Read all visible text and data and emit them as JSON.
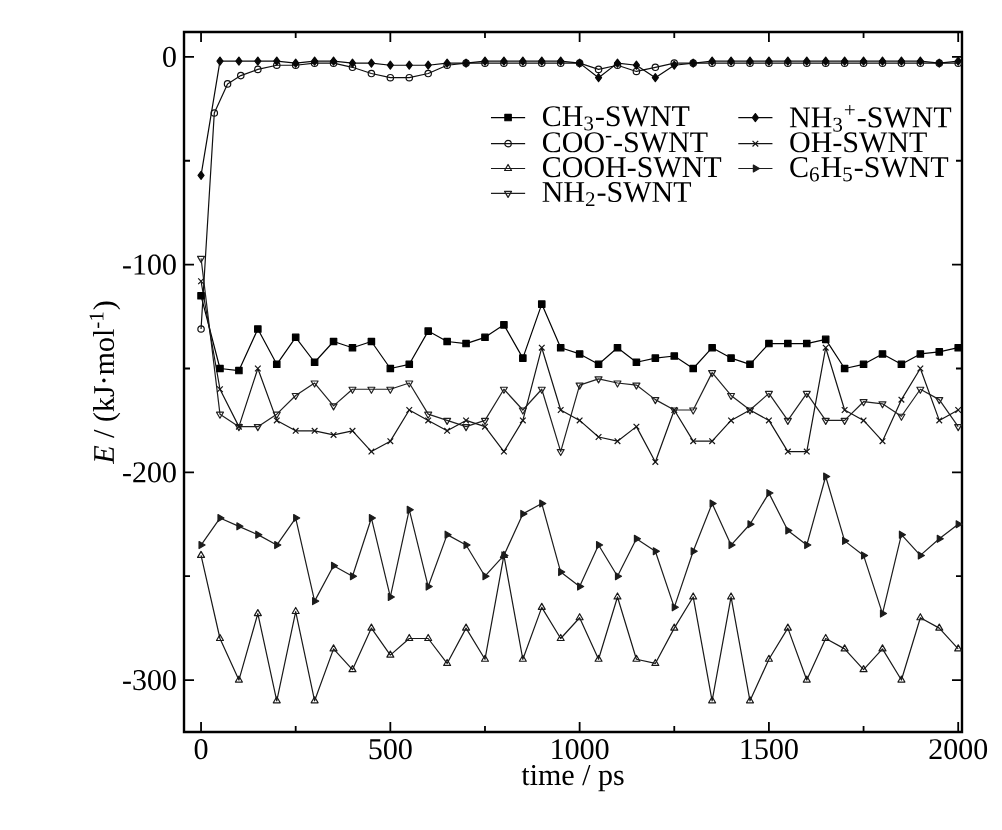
{
  "chart_data": {
    "type": "line",
    "xlabel": "time / ps",
    "ylabel": "*E* / (kJ·mol$^{-1}$)",
    "xlim": [
      -45,
      2010
    ],
    "ylim": [
      -325,
      12
    ],
    "xticks": [
      0,
      500,
      1000,
      1500,
      2000
    ],
    "yticks": [
      0,
      -100,
      -200,
      -300
    ],
    "legend": "top right",
    "line_style": "solid",
    "x": [
      0,
      50,
      100,
      150,
      200,
      250,
      300,
      350,
      400,
      450,
      500,
      550,
      600,
      650,
      700,
      750,
      800,
      850,
      900,
      950,
      1000,
      1050,
      1100,
      1150,
      1200,
      1250,
      1300,
      1350,
      1400,
      1450,
      1500,
      1550,
      1600,
      1650,
      1700,
      1750,
      1800,
      1850,
      1900,
      1950,
      2000
    ],
    "series": [
      {
        "name": "CH$_{3}$-SWNT",
        "color": "#000000",
        "marker": "square",
        "values": [
          -115,
          -150,
          -151,
          -131,
          -148,
          -135,
          -147,
          -137,
          -140,
          -137,
          -150,
          -148,
          -132,
          -137,
          -138,
          -135,
          -129,
          -145,
          -119,
          -140,
          -143,
          -148,
          -140,
          -147,
          -145,
          -144,
          -150,
          -140,
          -145,
          -148,
          -138,
          -138,
          -138,
          -136,
          -150,
          -148,
          -143,
          -148,
          -143,
          -142,
          -140
        ]
      },
      {
        "name": "COO$^{-}$-SWNT",
        "color": "#101010",
        "marker": "circle",
        "x": [
          0,
          35,
          70,
          105,
          150,
          200,
          250,
          300,
          350,
          400,
          450,
          500,
          550,
          600,
          650,
          700,
          750,
          800,
          850,
          900,
          950,
          1000,
          1050,
          1100,
          1150,
          1200,
          1250,
          1300,
          1350,
          1400,
          1450,
          1500,
          1550,
          1600,
          1650,
          1700,
          1750,
          1800,
          1850,
          1900,
          1950,
          2000
        ],
        "values": [
          -131,
          -27,
          -13,
          -9,
          -6,
          -4,
          -4,
          -3,
          -3,
          -5,
          -8,
          -10,
          -10,
          -8,
          -4,
          -3,
          -3,
          -3,
          -3,
          -3,
          -3,
          -3,
          -6,
          -4,
          -7,
          -5,
          -3,
          -3,
          -3,
          -3,
          -3,
          -3,
          -3,
          -3,
          -3,
          -3,
          -3,
          -3,
          -3,
          -3,
          -3,
          -3
        ]
      },
      {
        "name": "COOH-SWNT",
        "color": "#181818",
        "marker": "triangle",
        "values": [
          -240,
          -280,
          -300,
          -268,
          -310,
          -267,
          -310,
          -285,
          -295,
          -275,
          -288,
          -280,
          -280,
          -292,
          -275,
          -290,
          -240,
          -290,
          -265,
          -280,
          -270,
          -290,
          -260,
          -290,
          -292,
          -275,
          -260,
          -310,
          -260,
          -310,
          -290,
          -275,
          -300,
          -280,
          -285,
          -295,
          -285,
          -300,
          -270,
          -275,
          -285
        ]
      },
      {
        "name": "NH$_{2}$-SWNT",
        "color": "#202020",
        "marker": "triangle-down",
        "values": [
          -97,
          -172,
          -178,
          -178,
          -172,
          -163,
          -157,
          -168,
          -160,
          -160,
          -160,
          -157,
          -172,
          -175,
          -178,
          -175,
          -160,
          -170,
          -160,
          -190,
          -158,
          -155,
          -157,
          -158,
          -165,
          -170,
          -170,
          -152,
          -163,
          -170,
          -162,
          -175,
          -162,
          -175,
          -175,
          -166,
          -167,
          -173,
          -160,
          -165,
          -178
        ]
      },
      {
        "name": "NH$_{3}$$^{+}$-SWNT",
        "color": "#080808",
        "marker": "diamond",
        "values": [
          -57,
          -2,
          -2,
          -2,
          -2,
          -3,
          -2,
          -2,
          -3,
          -3,
          -4,
          -4,
          -4,
          -3,
          -3,
          -2,
          -2,
          -2,
          -2,
          -2,
          -3,
          -10,
          -3,
          -4,
          -10,
          -4,
          -3,
          -2,
          -2,
          -2,
          -2,
          -2,
          -2,
          -2,
          -2,
          -2,
          -2,
          -2,
          -2,
          -3,
          -2
        ]
      },
      {
        "name": "OH-SWNT",
        "color": "#141414",
        "marker": "cross",
        "values": [
          -108,
          -160,
          -178,
          -150,
          -175,
          -180,
          -180,
          -182,
          -180,
          -190,
          -185,
          -170,
          -175,
          -180,
          -175,
          -178,
          -190,
          -175,
          -140,
          -170,
          -175,
          -183,
          -185,
          -178,
          -195,
          -170,
          -185,
          -185,
          -175,
          -170,
          -175,
          -190,
          -190,
          -140,
          -170,
          -175,
          -185,
          -165,
          -150,
          -175,
          -170
        ]
      },
      {
        "name": "C$_{6}$H$_{5}$-SWNT",
        "color": "#1c1c1c",
        "marker": "triangle-right",
        "values": [
          -235,
          -222,
          -226,
          -230,
          -235,
          -222,
          -262,
          -245,
          -250,
          -222,
          -260,
          -218,
          -255,
          -230,
          -235,
          -250,
          -240,
          -220,
          -215,
          -248,
          -255,
          -235,
          -250,
          -232,
          -238,
          -265,
          -238,
          -215,
          -235,
          -225,
          -210,
          -228,
          -235,
          -202,
          -233,
          -240,
          -268,
          -230,
          -240,
          -232,
          -225
        ]
      }
    ]
  }
}
